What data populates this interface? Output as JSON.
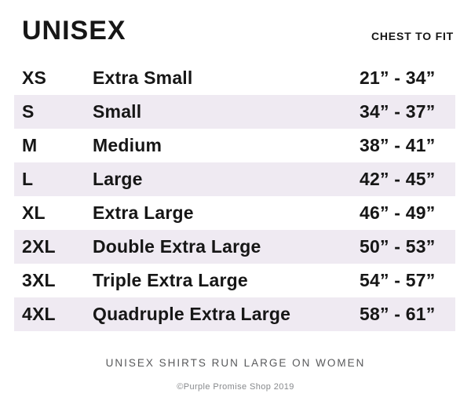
{
  "header": {
    "title": "UNISEX",
    "column_header": "CHEST TO FIT"
  },
  "table": {
    "rows": [
      {
        "code": "XS",
        "label": "Extra Small",
        "range": "21” - 34”"
      },
      {
        "code": "S",
        "label": "Small",
        "range": "34” - 37”"
      },
      {
        "code": "M",
        "label": "Medium",
        "range": "38” - 41”"
      },
      {
        "code": "L",
        "label": "Large",
        "range": "42” - 45”"
      },
      {
        "code": "XL",
        "label": "Extra Large",
        "range": "46” - 49”"
      },
      {
        "code": "2XL",
        "label": "Double Extra Large",
        "range": "50” - 53”"
      },
      {
        "code": "3XL",
        "label": "Triple Extra Large",
        "range": "54” - 57”"
      },
      {
        "code": "4XL",
        "label": "Quadruple Extra Large",
        "range": "58” - 61”"
      }
    ]
  },
  "footer": {
    "note": "UNISEX SHIRTS RUN LARGE ON WOMEN",
    "copyright": "©Purple Promise Shop 2019"
  },
  "colors": {
    "row_shade": "#efeaf2",
    "text": "#161616",
    "note_text": "#58595b",
    "copyright_text": "#87898c"
  }
}
